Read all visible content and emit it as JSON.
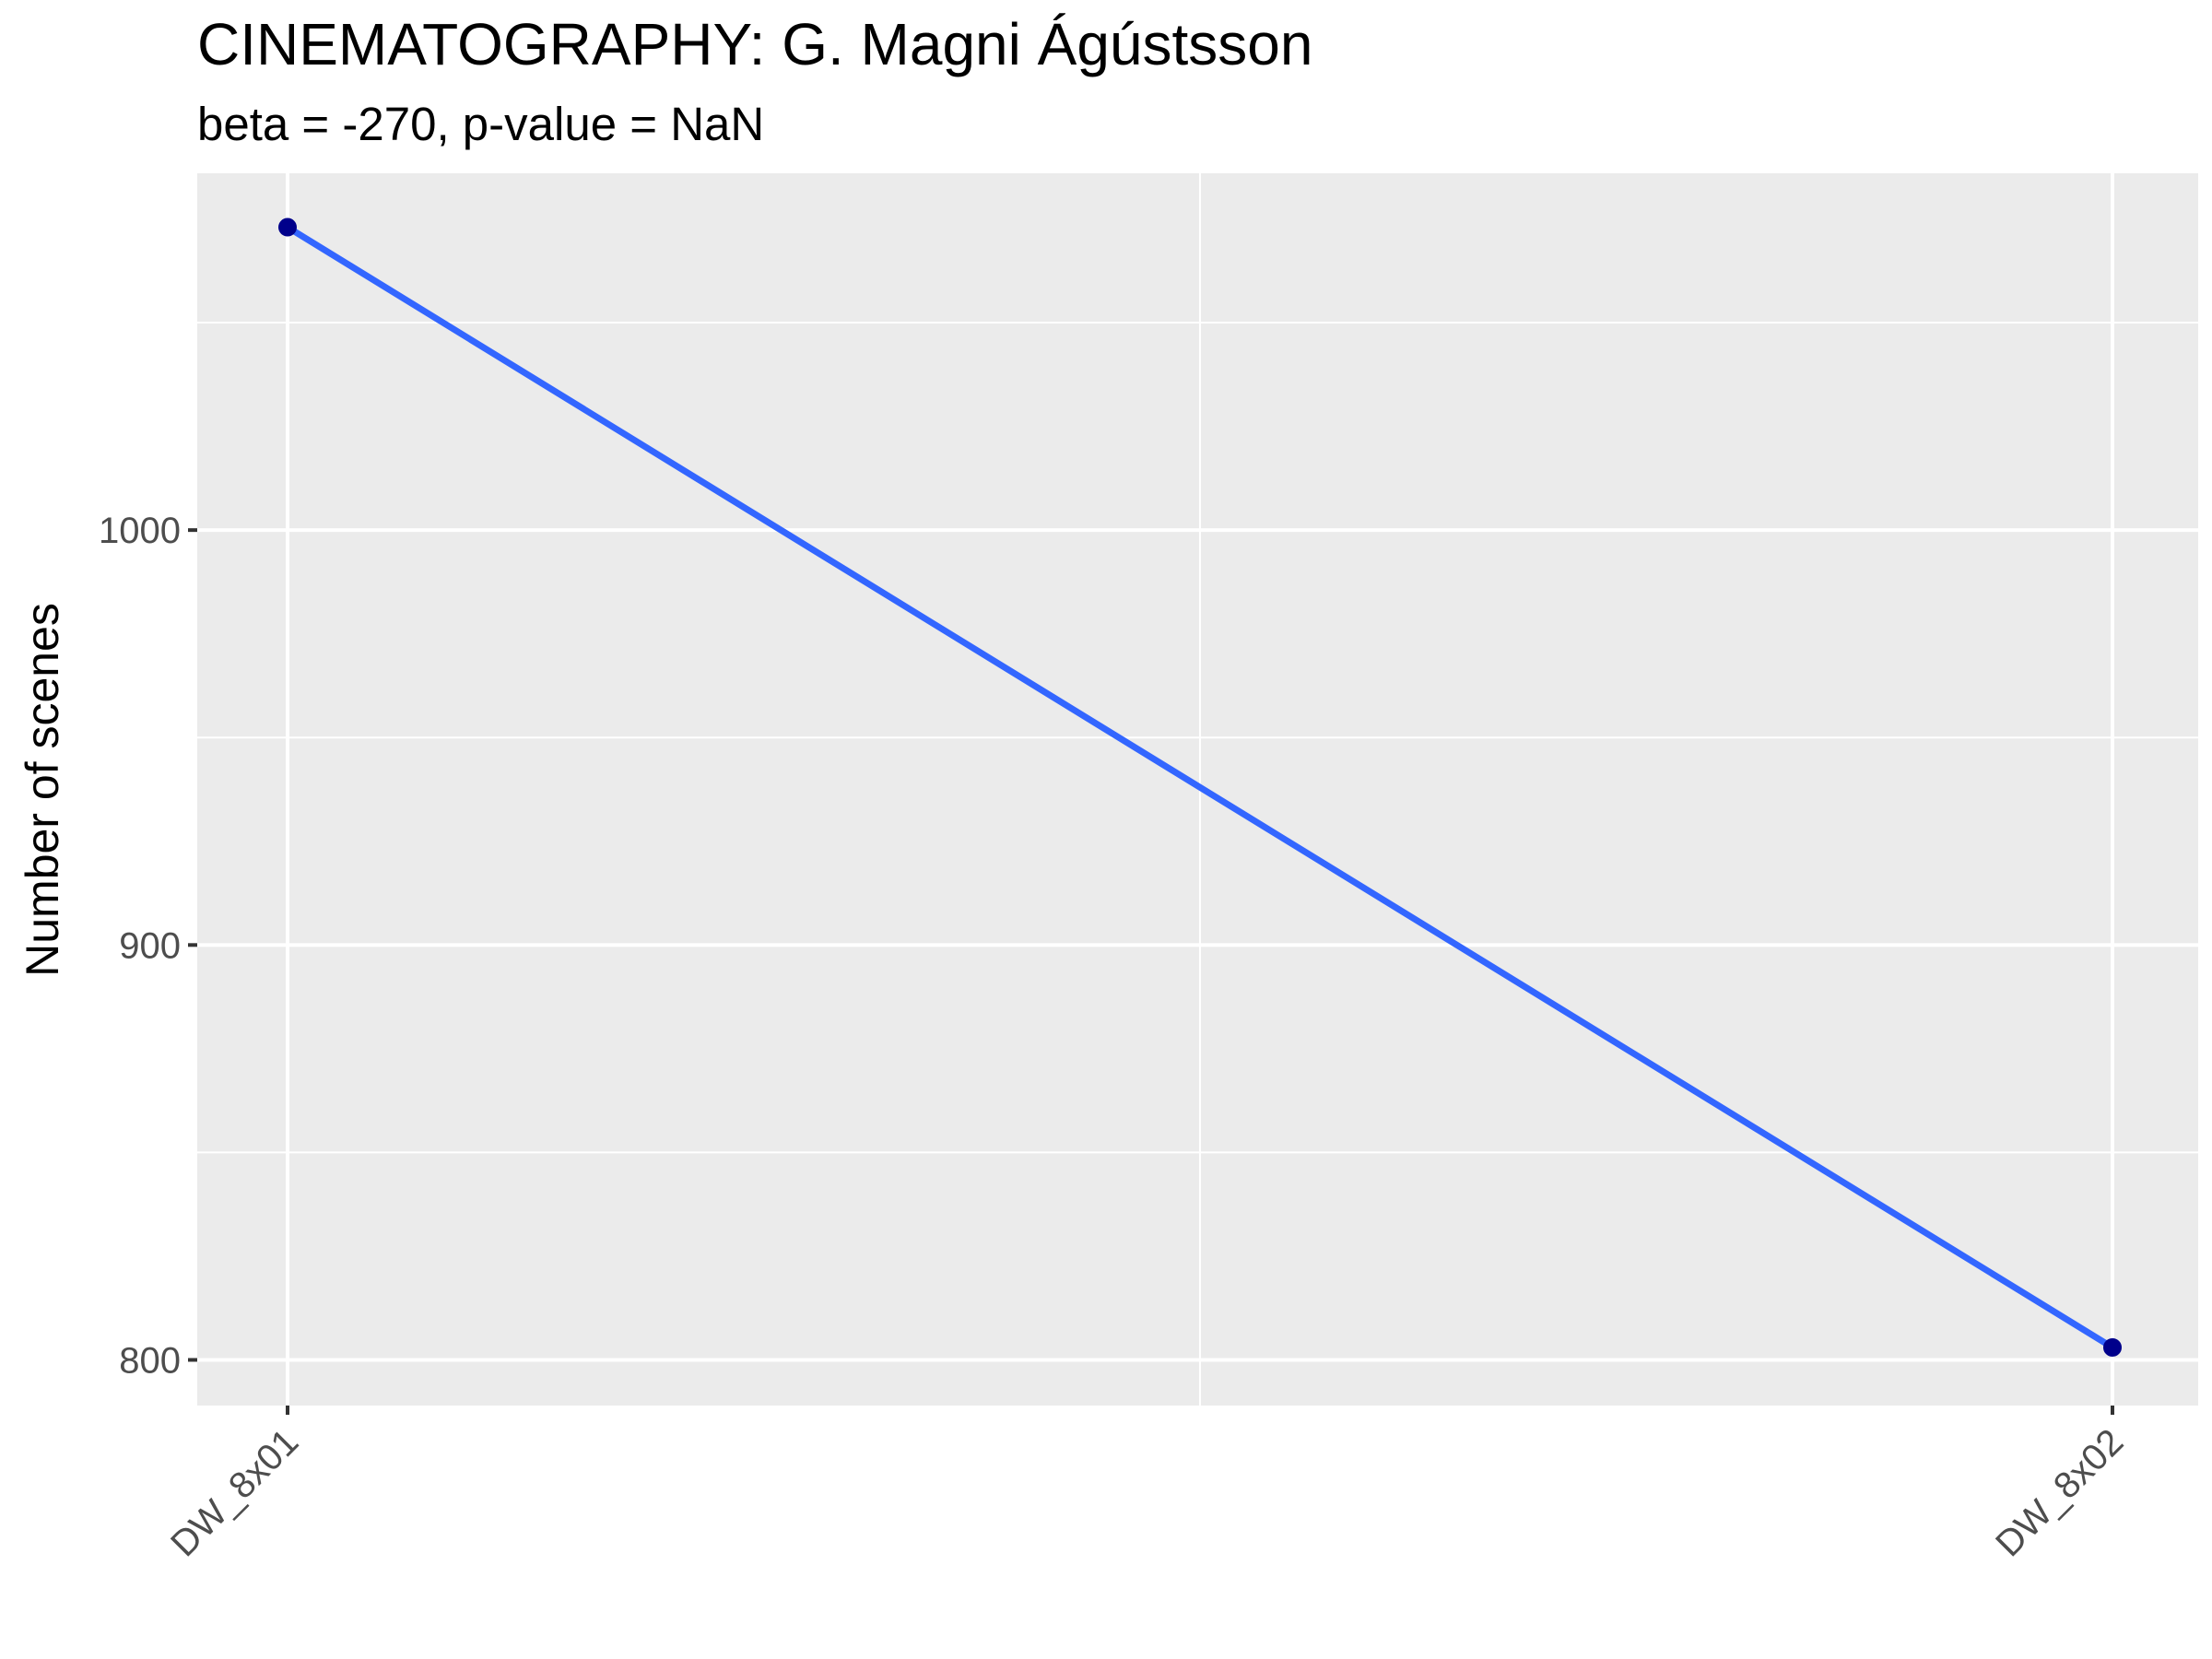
{
  "chart_data": {
    "type": "line",
    "title": "CINEMATOGRAPHY: G. Magni Ágústsson",
    "subtitle": "beta = -270, p-value = NaN",
    "xlabel": "",
    "ylabel": "Number of scenes",
    "categories": [
      "DW_8x01",
      "DW_8x02"
    ],
    "series": [
      {
        "values": [
          1073,
          803
        ]
      }
    ],
    "ylim": [
      789,
      1086
    ],
    "y_ticks": [
      "800",
      "900",
      "1000"
    ],
    "y_minor_ticks": [
      850,
      950,
      1050
    ],
    "grid": true,
    "legend": "none",
    "colors": {
      "panel": "#ebebeb",
      "grid": "#ffffff",
      "line": "#3366ff",
      "point": "#00008b",
      "tick_mark": "#333333"
    }
  }
}
